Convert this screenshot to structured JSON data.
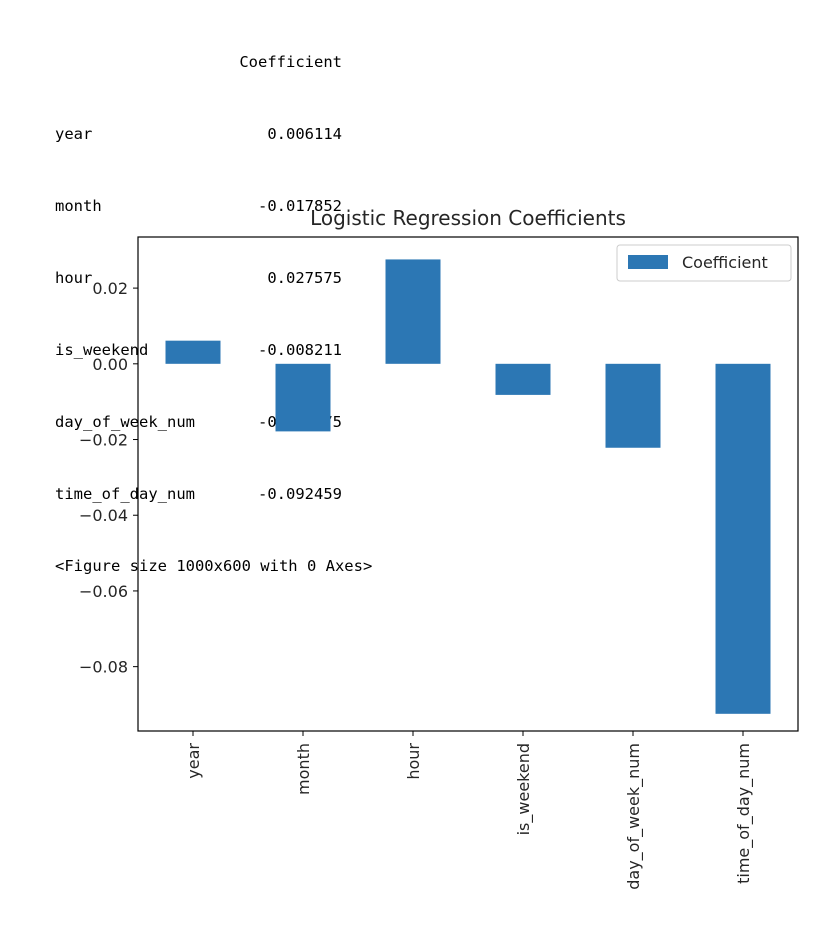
{
  "output": {
    "table_header": "Coefficient",
    "rows": [
      {
        "label": "year",
        "value": "0.006114"
      },
      {
        "label": "month",
        "value": "-0.017852"
      },
      {
        "label": "hour",
        "value": "0.027575"
      },
      {
        "label": "is_weekend",
        "value": "-0.008211"
      },
      {
        "label": "day_of_week_num",
        "value": "-0.022175"
      },
      {
        "label": "time_of_day_num",
        "value": "-0.092459"
      }
    ],
    "figure_note": "<Figure size 1000x600 with 0 Axes>"
  },
  "chart_data": {
    "type": "bar",
    "title": "Logistic Regression Coefficients",
    "categories": [
      "year",
      "month",
      "hour",
      "is_weekend",
      "day_of_week_num",
      "time_of_day_num"
    ],
    "series": [
      {
        "name": "Coefficient",
        "values": [
          0.006114,
          -0.017852,
          0.027575,
          -0.008211,
          -0.022175,
          -0.092459
        ],
        "color": "#2c77b4"
      }
    ],
    "yticks": [
      0.02,
      0.0,
      -0.02,
      -0.04,
      -0.06,
      -0.08
    ],
    "ytick_labels": [
      "0.02",
      "0.00",
      "−0.02",
      "−0.04",
      "−0.06",
      "−0.08"
    ],
    "ylim": [
      -0.097,
      0.0335
    ],
    "legend_position": "top-right",
    "grid": false
  }
}
